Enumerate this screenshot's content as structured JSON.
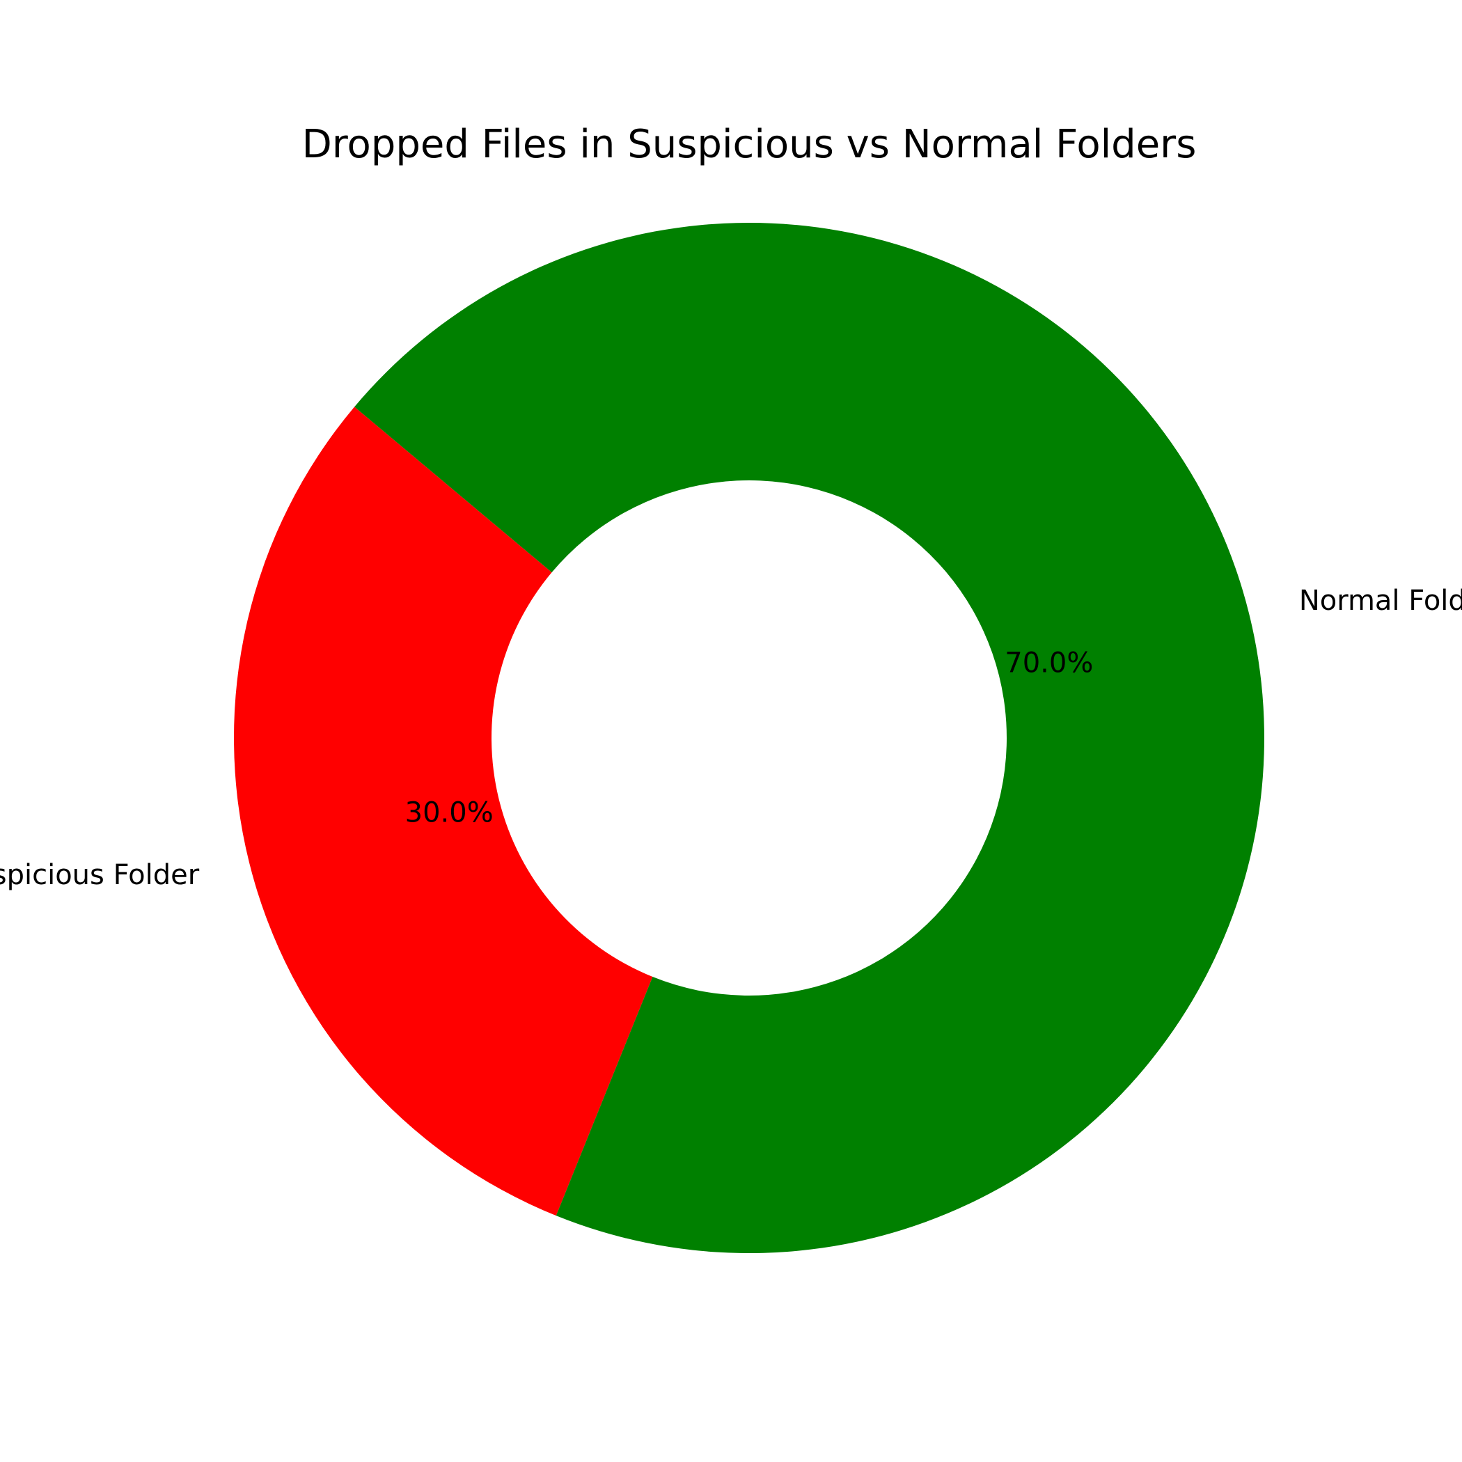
{
  "chart_data": {
    "type": "pie",
    "title": "Dropped Files in Suspicious vs Normal Folders",
    "donut": true,
    "labels": [
      "Suspicious Folder",
      "Normal Folder"
    ],
    "values": [
      30,
      70
    ],
    "percent_labels": [
      "30.0%",
      "70.0%"
    ],
    "colors": [
      "#ff0000",
      "#008000"
    ],
    "legend": "none"
  }
}
